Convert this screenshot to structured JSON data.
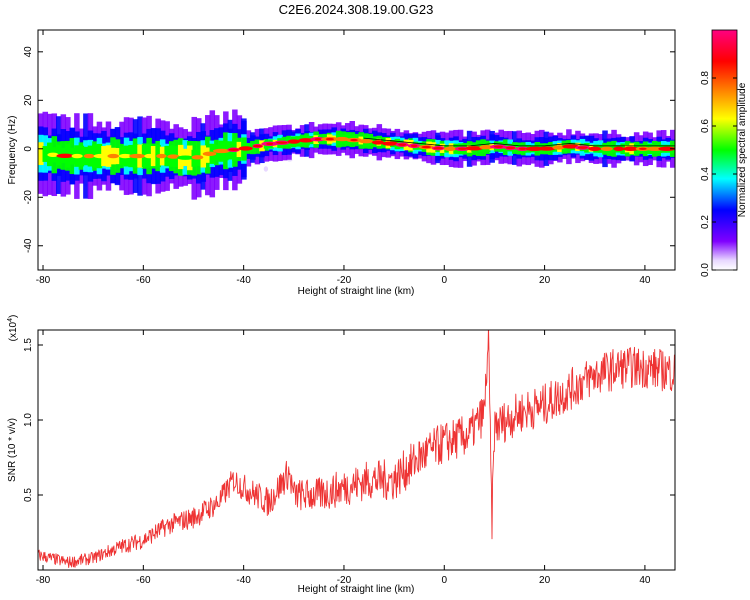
{
  "chart_data": [
    {
      "type": "heatmap",
      "title": "C2E6.2024.308.19.00.G23",
      "xlabel": "Height of straight line (km)",
      "ylabel": "Frequency (Hz)",
      "xlim": [
        -81,
        46
      ],
      "ylim": [
        -50,
        49
      ],
      "x_ticks": [
        -80,
        -60,
        -40,
        -20,
        0,
        20,
        40
      ],
      "y_ticks": [
        -40,
        -20,
        0,
        20,
        40
      ],
      "colorbar": {
        "label": "Normalized spectral amplitude",
        "range": [
          0,
          1
        ],
        "ticks": [
          0.0,
          0.2,
          0.4,
          0.6,
          0.8
        ],
        "colors": [
          "#ffffff",
          "#7f00ff",
          "#0000ff",
          "#00ffff",
          "#00ff00",
          "#ffff00",
          "#ff8000",
          "#ff0000",
          "#ff0080"
        ]
      },
      "ridge": {
        "x": [
          -81,
          -75,
          -70,
          -65,
          -60,
          -55,
          -50,
          -45,
          -40,
          -35,
          -30,
          -25,
          -20,
          -15,
          -10,
          -5,
          0,
          5,
          10,
          15,
          20,
          25,
          30,
          35,
          40,
          46
        ],
        "y": [
          -2,
          -3,
          -3,
          -3,
          -3,
          -3,
          -4,
          -1,
          0,
          2,
          3,
          4,
          4,
          3,
          2,
          1,
          0,
          0,
          1,
          0,
          0,
          1,
          0,
          0,
          0,
          0
        ]
      }
    },
    {
      "type": "line",
      "xlabel": "Height of straight line (km)",
      "ylabel": "SNR (10 * v/v)",
      "y_multiplier": "(x10",
      "y_multiplier_exp": "4",
      "multiplier_suffix": ")",
      "xlim": [
        -81,
        46
      ],
      "ylim": [
        0,
        1.6
      ],
      "x_ticks": [
        -80,
        -60,
        -40,
        -20,
        0,
        20,
        40
      ],
      "y_ticks": [
        0.5,
        1.0,
        1.5
      ],
      "y_tick_labels": [
        "0.5",
        "1.0",
        "1.5"
      ],
      "line_color": "#ee3333",
      "series": [
        {
          "x": [
            -81,
            -75,
            -70,
            -65,
            -60,
            -55,
            -50,
            -45,
            -42,
            -40,
            -35,
            -31,
            -30,
            -25,
            -20,
            -15,
            -10,
            -5,
            0,
            5,
            8,
            8.8,
            9.5,
            10,
            15,
            20,
            25,
            30,
            35,
            40,
            46
          ],
          "values": [
            0.1,
            0.05,
            0.08,
            0.15,
            0.2,
            0.3,
            0.35,
            0.45,
            0.6,
            0.55,
            0.45,
            0.65,
            0.5,
            0.5,
            0.55,
            0.6,
            0.6,
            0.75,
            0.85,
            0.9,
            1.05,
            1.55,
            0.3,
            0.95,
            1.05,
            1.1,
            1.2,
            1.3,
            1.35,
            1.35,
            1.32
          ]
        }
      ]
    }
  ]
}
